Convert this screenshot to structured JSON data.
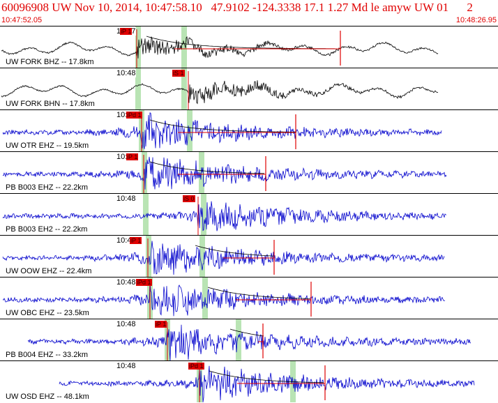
{
  "event": {
    "id": "60096908",
    "network": "UW",
    "date": "Nov 10, 2014",
    "time": "10:47:58.10",
    "lat": "47.9102",
    "lon": "-124.3338",
    "depth": "17.1",
    "magnitude": "1.27",
    "mag_type": "Md",
    "flags": "le",
    "author": "amyw",
    "source": "UW",
    "version": "01",
    "suffix": "2"
  },
  "header": {
    "start_time": "10:47:52.05",
    "end_time": "10:48:26.95"
  },
  "colors": {
    "header_text": "#e00000",
    "vertical_trace": "#000000",
    "horizontal_trace": "#0000cc",
    "pick_flag": "#e00000",
    "window_band": "#b9e4b4"
  },
  "traces": [
    {
      "label": "UW FORK BHZ -- 17.8km",
      "minute": "10:47",
      "pick": "iP 1",
      "color_key": "vertical_trace"
    },
    {
      "label": "UW FORK BHN -- 17.8km",
      "minute": "10:48",
      "pick": "iS 1",
      "color_key": "vertical_trace"
    },
    {
      "label": "UW OTR EHZ -- 19.5km",
      "minute": "10:48",
      "pick": "iPd 1",
      "color_key": "horizontal_trace"
    },
    {
      "label": "PB B003 EHZ -- 22.2km",
      "minute": "10:48",
      "pick": "iP 1",
      "color_key": "horizontal_trace"
    },
    {
      "label": "PB B003 EH2 -- 22.2km",
      "minute": "10:48",
      "pick": "iS 0",
      "color_key": "horizontal_trace"
    },
    {
      "label": "UW OOW EHZ -- 22.4km",
      "minute": "10:48",
      "pick": "iP 1",
      "color_key": "horizontal_trace"
    },
    {
      "label": "UW OBC EHZ -- 23.5km",
      "minute": "10:48",
      "pick": "iPd 1",
      "color_key": "horizontal_trace"
    },
    {
      "label": "PB B004 EHZ -- 33.2km",
      "minute": "10:48",
      "pick": "iP 1",
      "color_key": "horizontal_trace"
    },
    {
      "label": "UW OSD EHZ -- 48.1km",
      "minute": "10:48",
      "pick": "iPd 1",
      "color_key": "horizontal_trace"
    }
  ]
}
